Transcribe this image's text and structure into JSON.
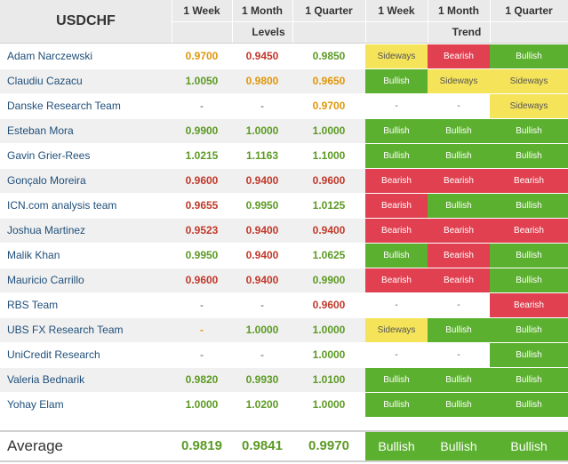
{
  "header": {
    "symbol": "USDCHF",
    "periods": [
      "1 Week",
      "1 Month",
      "1 Quarter"
    ],
    "levels_label": "Levels",
    "trend_label": "Trend"
  },
  "colors": {
    "green": "#5c9a24",
    "orange": "#e0960a",
    "red": "#c0392b",
    "bullish": "#5cb030",
    "bearish": "#e04050",
    "sideways": "#f5e45a",
    "name": "#1f4e79"
  },
  "rows": [
    {
      "name": "Adam Narczewski",
      "levels": [
        "0.9700",
        "0.9450",
        "0.9850"
      ],
      "level_colors": [
        "orange",
        "red",
        "green"
      ],
      "trends": [
        "Sideways",
        "Bearish",
        "Bullish"
      ]
    },
    {
      "name": "Claudiu Cazacu",
      "levels": [
        "1.0050",
        "0.9800",
        "0.9650"
      ],
      "level_colors": [
        "green",
        "orange",
        "orange"
      ],
      "trends": [
        "Bullish",
        "Sideways",
        "Sideways"
      ]
    },
    {
      "name": "Danske Research Team",
      "levels": [
        "-",
        "-",
        "0.9700"
      ],
      "level_colors": [
        "none",
        "none",
        "orange"
      ],
      "trends": [
        "-",
        "-",
        "Sideways"
      ]
    },
    {
      "name": "Esteban Mora",
      "levels": [
        "0.9900",
        "1.0000",
        "1.0000"
      ],
      "level_colors": [
        "green",
        "green",
        "green"
      ],
      "trends": [
        "Bullish",
        "Bullish",
        "Bullish"
      ]
    },
    {
      "name": "Gavin Grier-Rees",
      "levels": [
        "1.0215",
        "1.1163",
        "1.1000"
      ],
      "level_colors": [
        "green",
        "green",
        "green"
      ],
      "trends": [
        "Bullish",
        "Bullish",
        "Bullish"
      ]
    },
    {
      "name": "Gonçalo Moreira",
      "levels": [
        "0.9600",
        "0.9400",
        "0.9600"
      ],
      "level_colors": [
        "red",
        "red",
        "red"
      ],
      "trends": [
        "Bearish",
        "Bearish",
        "Bearish"
      ]
    },
    {
      "name": "ICN.com analysis team",
      "levels": [
        "0.9655",
        "0.9950",
        "1.0125"
      ],
      "level_colors": [
        "red",
        "green",
        "green"
      ],
      "trends": [
        "Bearish",
        "Bullish",
        "Bullish"
      ]
    },
    {
      "name": "Joshua Martinez",
      "levels": [
        "0.9523",
        "0.9400",
        "0.9400"
      ],
      "level_colors": [
        "red",
        "red",
        "red"
      ],
      "trends": [
        "Bearish",
        "Bearish",
        "Bearish"
      ]
    },
    {
      "name": "Malik Khan",
      "levels": [
        "0.9950",
        "0.9400",
        "1.0625"
      ],
      "level_colors": [
        "green",
        "red",
        "green"
      ],
      "trends": [
        "Bullish",
        "Bearish",
        "Bullish"
      ]
    },
    {
      "name": "Mauricio Carrillo",
      "levels": [
        "0.9600",
        "0.9400",
        "0.9900"
      ],
      "level_colors": [
        "red",
        "red",
        "green"
      ],
      "trends": [
        "Bearish",
        "Bearish",
        "Bullish"
      ]
    },
    {
      "name": "RBS Team",
      "levels": [
        "-",
        "-",
        "0.9600"
      ],
      "level_colors": [
        "none",
        "none",
        "red"
      ],
      "trends": [
        "-",
        "-",
        "Bearish"
      ]
    },
    {
      "name": "UBS FX Research Team",
      "levels": [
        "-",
        "1.0000",
        "1.0000"
      ],
      "level_colors": [
        "orange",
        "green",
        "green"
      ],
      "trends": [
        "Sideways",
        "Bullish",
        "Bullish"
      ]
    },
    {
      "name": "UniCredit Research",
      "levels": [
        "-",
        "-",
        "1.0000"
      ],
      "level_colors": [
        "none",
        "none",
        "green"
      ],
      "trends": [
        "-",
        "-",
        "Bullish"
      ]
    },
    {
      "name": "Valeria Bednarik",
      "levels": [
        "0.9820",
        "0.9930",
        "1.0100"
      ],
      "level_colors": [
        "green",
        "green",
        "green"
      ],
      "trends": [
        "Bullish",
        "Bullish",
        "Bullish"
      ]
    },
    {
      "name": "Yohay Elam",
      "levels": [
        "1.0000",
        "1.0200",
        "1.0000"
      ],
      "level_colors": [
        "green",
        "green",
        "green"
      ],
      "trends": [
        "Bullish",
        "Bullish",
        "Bullish"
      ]
    }
  ],
  "average": {
    "label": "Average",
    "levels": [
      "0.9819",
      "0.9841",
      "0.9970"
    ],
    "trends": [
      "Bullish",
      "Bullish",
      "Bullish"
    ]
  }
}
